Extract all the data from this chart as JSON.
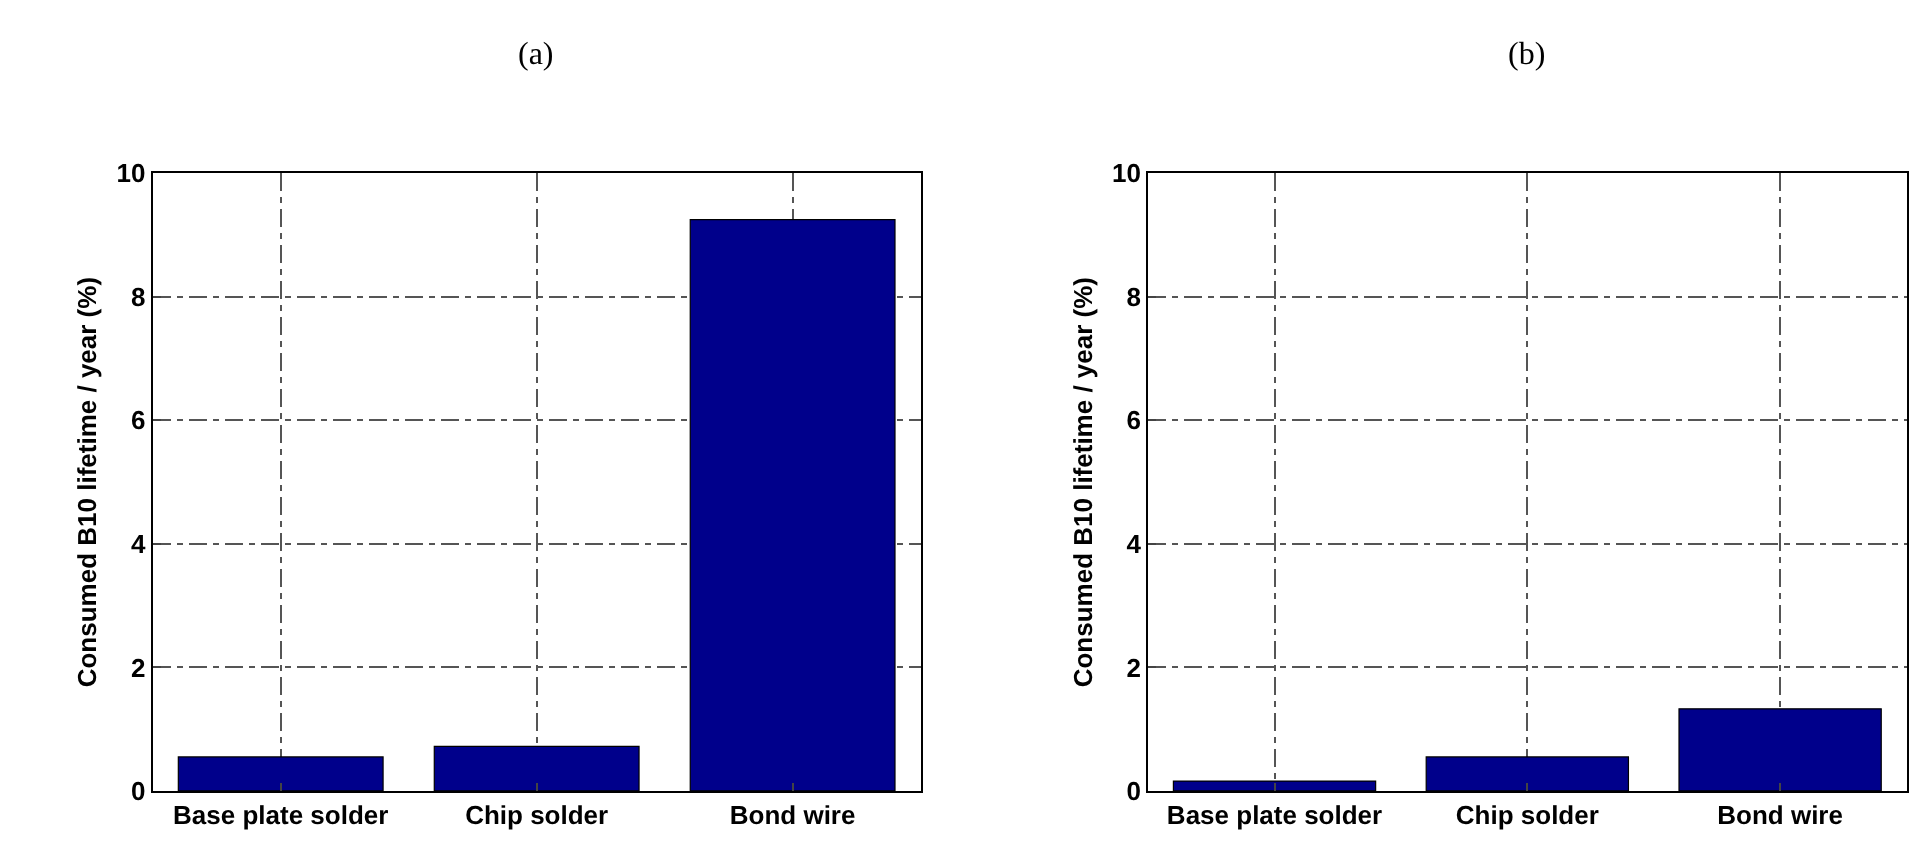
{
  "chart_data": [
    {
      "type": "bar",
      "title": "(a)",
      "ylabel": "Consumed B10 lifetime / year (%)",
      "categories": [
        "Base plate solder",
        "Chip solder",
        "Bond wire"
      ],
      "values": [
        0.55,
        0.72,
        9.25
      ],
      "color": "#00008b",
      "ylim": [
        0,
        10
      ],
      "yticks": [
        0,
        2,
        4,
        6,
        8,
        10
      ],
      "grid": true
    },
    {
      "type": "bar",
      "title": "(b)",
      "ylabel": "Consumed B10 lifetime / year (%)",
      "categories": [
        "Base plate solder",
        "Chip solder",
        "Bond wire"
      ],
      "values": [
        0.16,
        0.55,
        1.33
      ],
      "color": "#00008b",
      "ylim": [
        0,
        10
      ],
      "yticks": [
        0,
        2,
        4,
        6,
        8,
        10
      ],
      "grid": true
    }
  ]
}
